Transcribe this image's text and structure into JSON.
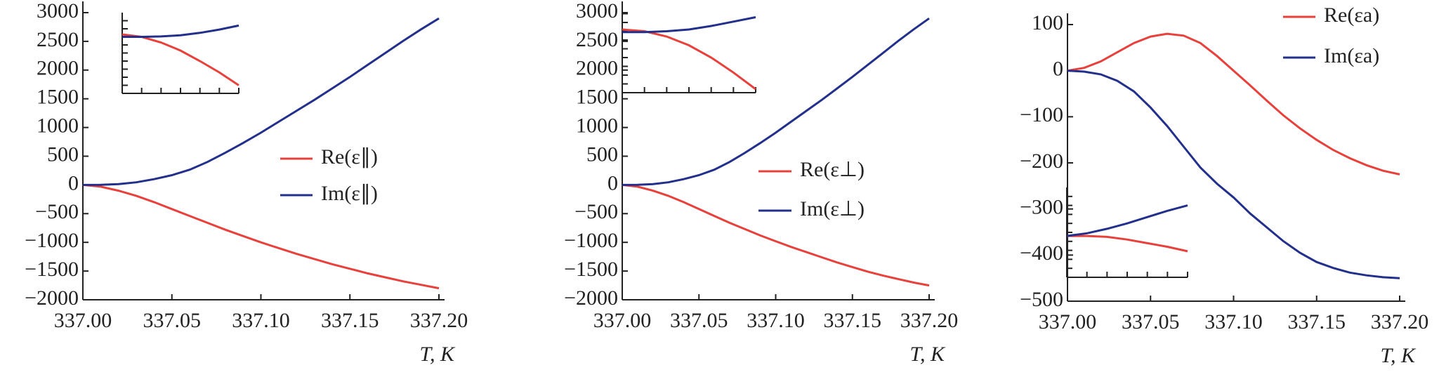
{
  "chart_data": [
    {
      "type": "line",
      "xlabel": "T, K",
      "x": [
        337.0,
        337.01,
        337.02,
        337.03,
        337.04,
        337.05,
        337.06,
        337.07,
        337.08,
        337.09,
        337.1,
        337.11,
        337.12,
        337.13,
        337.14,
        337.15,
        337.16,
        337.17,
        337.18,
        337.19,
        337.2
      ],
      "xlim": [
        337.0,
        337.2
      ],
      "xticks": [
        {
          "value": 337.0,
          "label": "337.00"
        },
        {
          "value": 337.05,
          "label": "337.05"
        },
        {
          "value": 337.1,
          "label": "337.10"
        },
        {
          "value": 337.15,
          "label": "337.15"
        },
        {
          "value": 337.2,
          "label": "337.20"
        }
      ],
      "ylim": [
        -2000,
        3000
      ],
      "yticks": [
        3000,
        2500,
        2000,
        1500,
        1000,
        500,
        0,
        {
          "value": -500,
          "label": "−500"
        },
        {
          "value": -1000,
          "label": "−1000"
        },
        {
          "value": -1500,
          "label": "−1500"
        },
        {
          "value": -2000,
          "label": "−2000"
        }
      ],
      "series": [
        {
          "name": "Re(ε∥)",
          "color": "#e8413c",
          "values": [
            0,
            -30,
            -100,
            -190,
            -300,
            -420,
            -540,
            -660,
            -780,
            -890,
            -1000,
            -1100,
            -1200,
            -1290,
            -1380,
            -1460,
            -1540,
            -1610,
            -1680,
            -1740,
            -1800
          ]
        },
        {
          "name": "Im(ε∥)",
          "color": "#22308c",
          "values": [
            0,
            3,
            15,
            45,
            100,
            170,
            265,
            400,
            560,
            730,
            910,
            1100,
            1290,
            1480,
            1680,
            1880,
            2090,
            2300,
            2510,
            2710,
            2900
          ]
        }
      ],
      "inset": {
        "x": [
          0,
          1,
          2,
          3,
          4,
          5,
          6
        ],
        "xlim": [
          0,
          6
        ],
        "ylim": [
          0,
          10
        ],
        "xticks": [
          0,
          1,
          2,
          3,
          4,
          5,
          6
        ],
        "yticks": [
          1,
          2,
          3,
          4,
          5,
          6,
          7,
          8,
          9
        ],
        "series": [
          {
            "color": "#e8413c",
            "values": [
              7.3,
              7.0,
              6.3,
              5.3,
              4.0,
              2.6,
              1.0
            ]
          },
          {
            "color": "#22308c",
            "values": [
              7.0,
              7.0,
              7.05,
              7.2,
              7.5,
              7.9,
              8.4
            ]
          }
        ]
      }
    },
    {
      "type": "line",
      "xlabel": "T, K",
      "x": [
        337.0,
        337.01,
        337.02,
        337.03,
        337.04,
        337.05,
        337.06,
        337.07,
        337.08,
        337.09,
        337.1,
        337.11,
        337.12,
        337.13,
        337.14,
        337.15,
        337.16,
        337.17,
        337.18,
        337.19,
        337.2
      ],
      "xlim": [
        337.0,
        337.2
      ],
      "xticks": [
        {
          "value": 337.0,
          "label": "337.00"
        },
        {
          "value": 337.05,
          "label": "337.05"
        },
        {
          "value": 337.1,
          "label": "337.10"
        },
        {
          "value": 337.15,
          "label": "337.15"
        },
        {
          "value": 337.2,
          "label": "337.20"
        }
      ],
      "ylim": [
        -2000,
        3000
      ],
      "yticks": [
        3000,
        2500,
        2000,
        1500,
        1000,
        500,
        0,
        {
          "value": -500,
          "label": "−500"
        },
        {
          "value": -1000,
          "label": "−1000"
        },
        {
          "value": -1500,
          "label": "−1500"
        },
        {
          "value": -2000,
          "label": "−2000"
        }
      ],
      "series": [
        {
          "name": "Re(ε⊥)",
          "color": "#e8413c",
          "values": [
            0,
            -30,
            -100,
            -190,
            -300,
            -420,
            -540,
            -660,
            -770,
            -880,
            -980,
            -1080,
            -1170,
            -1260,
            -1350,
            -1430,
            -1510,
            -1580,
            -1640,
            -1700,
            -1750
          ]
        },
        {
          "name": "Im(ε⊥)",
          "color": "#22308c",
          "values": [
            0,
            3,
            15,
            45,
            100,
            170,
            265,
            400,
            560,
            730,
            910,
            1100,
            1290,
            1480,
            1680,
            1880,
            2090,
            2300,
            2510,
            2710,
            2900
          ]
        }
      ],
      "inset": {
        "x": [
          0,
          1,
          2,
          3,
          4,
          5,
          6
        ],
        "xlim": [
          0,
          6
        ],
        "ylim": [
          0,
          10
        ],
        "xticks": [
          0,
          1,
          2,
          3,
          4,
          5,
          6
        ],
        "yticks": [
          1,
          2,
          3,
          4,
          5,
          6,
          7,
          8,
          9
        ],
        "series": [
          {
            "color": "#e8413c",
            "values": [
              7.2,
              7.0,
              6.4,
              5.4,
              4.0,
              2.3,
              0.4
            ]
          },
          {
            "color": "#22308c",
            "values": [
              6.9,
              6.9,
              7.0,
              7.2,
              7.6,
              8.1,
              8.6
            ]
          }
        ]
      }
    },
    {
      "type": "line",
      "xlabel": "T, K",
      "x": [
        337.0,
        337.01,
        337.02,
        337.03,
        337.04,
        337.05,
        337.06,
        337.07,
        337.08,
        337.09,
        337.1,
        337.11,
        337.12,
        337.13,
        337.14,
        337.15,
        337.16,
        337.17,
        337.18,
        337.19,
        337.2
      ],
      "xlim": [
        337.0,
        337.2
      ],
      "xticks": [
        {
          "value": 337.0,
          "label": "337.00"
        },
        {
          "value": 337.05,
          "label": "337.05"
        },
        {
          "value": 337.1,
          "label": "337.10"
        },
        {
          "value": 337.15,
          "label": "337.15"
        },
        {
          "value": 337.2,
          "label": "337.20"
        }
      ],
      "ylim": [
        -500,
        100
      ],
      "yticks": [
        100,
        0,
        {
          "value": -100,
          "label": "−100"
        },
        {
          "value": -200,
          "label": "−200"
        },
        {
          "value": -300,
          "label": "−300"
        },
        {
          "value": -400,
          "label": "−400"
        },
        {
          "value": -500,
          "label": "−500"
        }
      ],
      "series": [
        {
          "name": "Re(εa)",
          "color": "#e8413c",
          "values": [
            0,
            6,
            20,
            40,
            60,
            74,
            80,
            76,
            60,
            32,
            0,
            -32,
            -65,
            -97,
            -125,
            -150,
            -172,
            -190,
            -205,
            -217,
            -225
          ]
        },
        {
          "name": "Im(εa)",
          "color": "#22308c",
          "values": [
            0,
            -2,
            -8,
            -22,
            -45,
            -80,
            -120,
            -165,
            -210,
            -245,
            -275,
            -310,
            -340,
            -370,
            -395,
            -415,
            -428,
            -438,
            -444,
            -448,
            -450
          ]
        }
      ],
      "inset": {
        "x": [
          0,
          1,
          2,
          3,
          4,
          5,
          6
        ],
        "xlim": [
          0,
          6
        ],
        "ylim": [
          0,
          10
        ],
        "xticks": [
          0,
          1,
          2,
          3,
          4,
          5,
          6
        ],
        "yticks": [
          1,
          2,
          3,
          4,
          5,
          6,
          7,
          8,
          9
        ],
        "series": [
          {
            "color": "#e8413c",
            "values": [
              4.6,
              4.6,
              4.5,
              4.2,
              3.8,
              3.4,
              2.9
            ]
          },
          {
            "color": "#22308c",
            "values": [
              4.6,
              4.9,
              5.4,
              6.0,
              6.7,
              7.4,
              8.0
            ]
          }
        ]
      }
    }
  ]
}
